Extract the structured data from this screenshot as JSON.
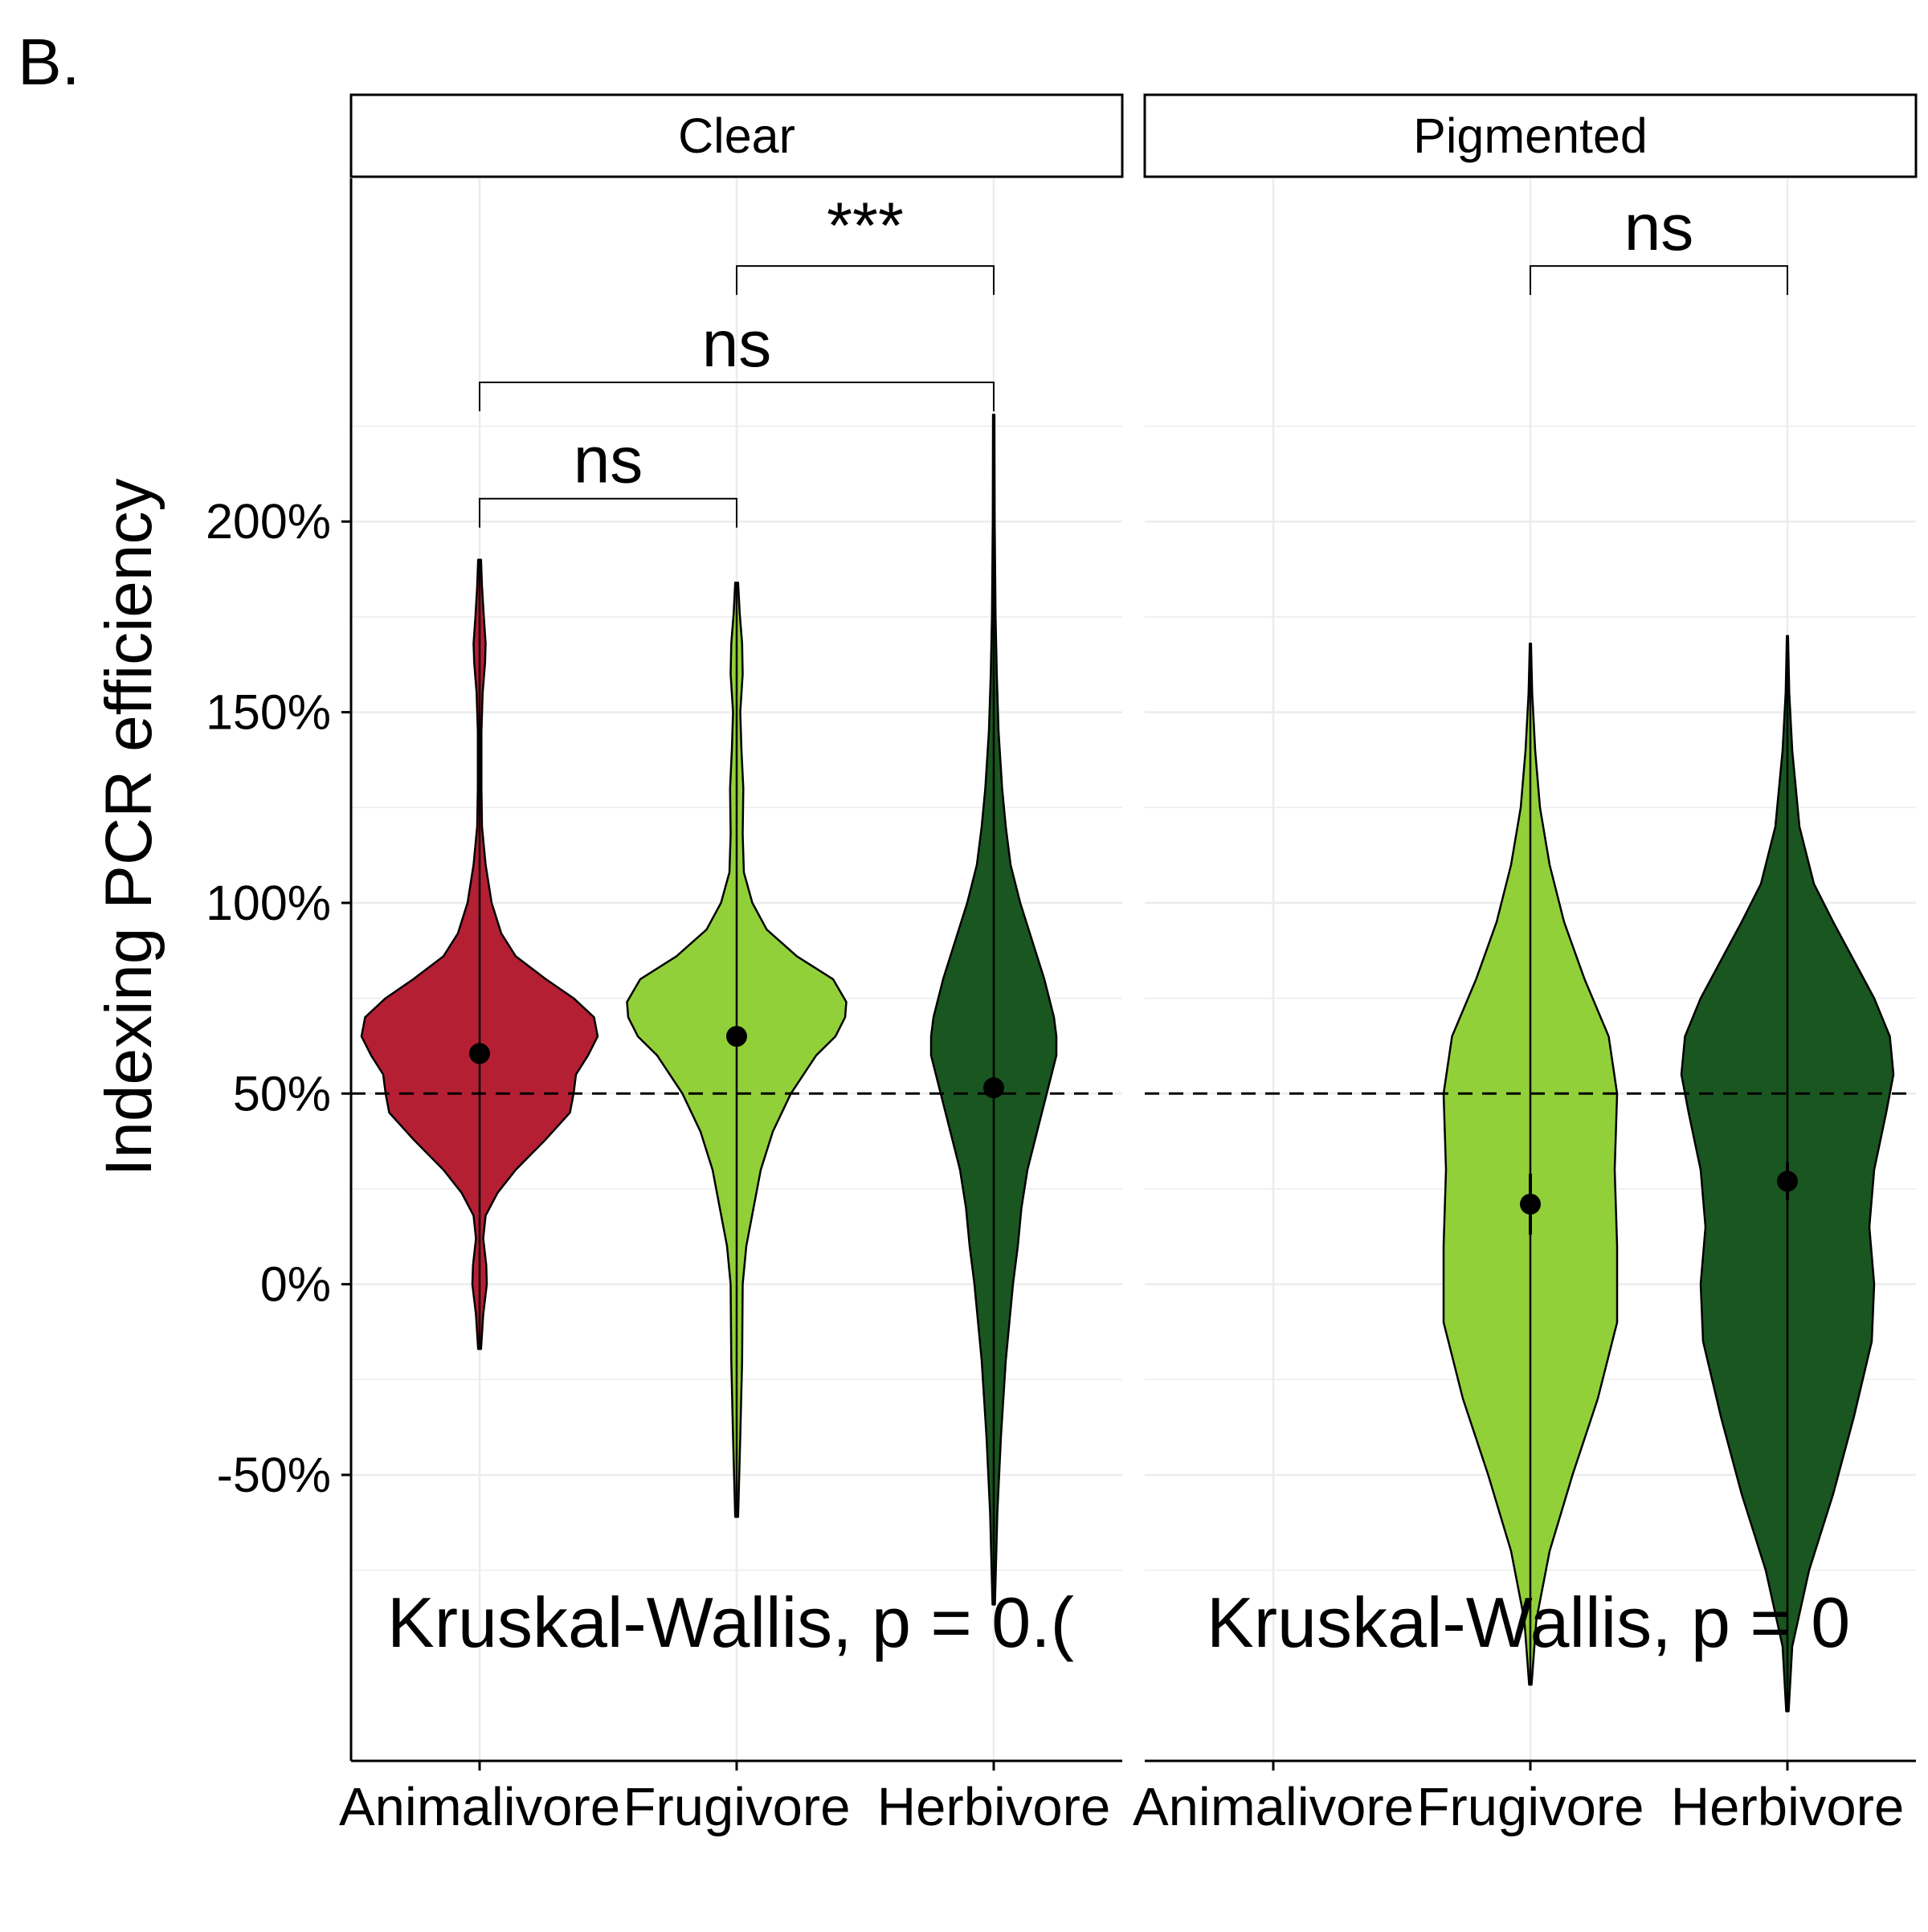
{
  "panel_tag": "B.",
  "colors": {
    "Animalivore": "#b51f34",
    "Frugivore": "#92d03a",
    "Herbivore": "#1a5620",
    "outline": "#000000",
    "grid": "#ececec",
    "reference_line": "#000000"
  },
  "chart_data": {
    "type": "violin",
    "title": "",
    "ylabel": "Indexing PCR efficiency",
    "xlabel": "",
    "ylim": [
      -125,
      290
    ],
    "y_ticks": [
      -50,
      0,
      50,
      100,
      150,
      200
    ],
    "y_tick_labels": [
      "-50%",
      "0%",
      "50%",
      "100%",
      "150%",
      "200%"
    ],
    "y_tick_unit": "%",
    "categories": [
      "Animalivore",
      "Frugivore",
      "Herbivore"
    ],
    "reference_line": {
      "y": 50,
      "style": "dashed"
    },
    "grid": "major and minor, light",
    "legend": "none",
    "facets": [
      {
        "strip_label": "Clear",
        "violins": [
          {
            "category": "Animalivore",
            "color": "#b51f34",
            "ymin": -17,
            "ymax": 190,
            "mean": 60.5,
            "ci": [
              59.5,
              61.5
            ],
            "density": [
              [
                -17,
                0.012
              ],
              [
                -8,
                0.03
              ],
              [
                0,
                0.06
              ],
              [
                5,
                0.055
              ],
              [
                12,
                0.03
              ],
              [
                18,
                0.05
              ],
              [
                24,
                0.15
              ],
              [
                30,
                0.3
              ],
              [
                38,
                0.55
              ],
              [
                45,
                0.75
              ],
              [
                50,
                0.78
              ],
              [
                55,
                0.8
              ],
              [
                60,
                0.9
              ],
              [
                65,
                0.98
              ],
              [
                70,
                0.95
              ],
              [
                75,
                0.78
              ],
              [
                80,
                0.55
              ],
              [
                86,
                0.3
              ],
              [
                92,
                0.18
              ],
              [
                100,
                0.1
              ],
              [
                110,
                0.05
              ],
              [
                120,
                0.02
              ],
              [
                130,
                0.015
              ],
              [
                145,
                0.015
              ],
              [
                155,
                0.025
              ],
              [
                163,
                0.045
              ],
              [
                168,
                0.05
              ],
              [
                175,
                0.035
              ],
              [
                183,
                0.02
              ],
              [
                190,
                0.012
              ]
            ]
          },
          {
            "category": "Frugivore",
            "color": "#92d03a",
            "ymin": -61,
            "ymax": 184,
            "mean": 65,
            "ci": [
              64,
              66
            ],
            "density": [
              [
                -61,
                0.012
              ],
              [
                -40,
                0.03
              ],
              [
                -20,
                0.045
              ],
              [
                0,
                0.05
              ],
              [
                10,
                0.08
              ],
              [
                20,
                0.14
              ],
              [
                30,
                0.2
              ],
              [
                40,
                0.3
              ],
              [
                50,
                0.45
              ],
              [
                60,
                0.66
              ],
              [
                65,
                0.82
              ],
              [
                70,
                0.9
              ],
              [
                74,
                0.91
              ],
              [
                80,
                0.8
              ],
              [
                86,
                0.5
              ],
              [
                93,
                0.25
              ],
              [
                100,
                0.13
              ],
              [
                108,
                0.06
              ],
              [
                118,
                0.05
              ],
              [
                130,
                0.055
              ],
              [
                140,
                0.04
              ],
              [
                150,
                0.03
              ],
              [
                160,
                0.05
              ],
              [
                168,
                0.045
              ],
              [
                176,
                0.025
              ],
              [
                184,
                0.012
              ]
            ]
          },
          {
            "category": "Herbivore",
            "color": "#1a5620",
            "ymin": -84,
            "ymax": 228,
            "mean": 51.5,
            "ci": [
              50.5,
              52.5
            ],
            "density": [
              [
                -84,
                0.01
              ],
              [
                -60,
                0.03
              ],
              [
                -40,
                0.06
              ],
              [
                -20,
                0.1
              ],
              [
                0,
                0.16
              ],
              [
                10,
                0.2
              ],
              [
                20,
                0.23
              ],
              [
                30,
                0.28
              ],
              [
                40,
                0.36
              ],
              [
                50,
                0.44
              ],
              [
                60,
                0.52
              ],
              [
                65,
                0.52
              ],
              [
                70,
                0.5
              ],
              [
                80,
                0.42
              ],
              [
                90,
                0.32
              ],
              [
                100,
                0.22
              ],
              [
                110,
                0.14
              ],
              [
                120,
                0.1
              ],
              [
                130,
                0.07
              ],
              [
                145,
                0.04
              ],
              [
                160,
                0.025
              ],
              [
                175,
                0.015
              ],
              [
                200,
                0.008
              ],
              [
                228,
                0.006
              ]
            ]
          }
        ],
        "comparisons": [
          {
            "groups": [
              "Animalivore",
              "Frugivore"
            ],
            "label": "ns",
            "y_bar": 206
          },
          {
            "groups": [
              "Animalivore",
              "Herbivore"
            ],
            "label": "ns",
            "y_bar": 236.5
          },
          {
            "groups": [
              "Frugivore",
              "Herbivore"
            ],
            "label": "***",
            "y_bar": 267
          }
        ],
        "test_text": "Kruskal-Wallis, p = 0.("
      },
      {
        "strip_label": "Pigmented",
        "violins": [
          {
            "category": "Frugivore",
            "color": "#92d03a",
            "ymin": -105,
            "ymax": 168,
            "mean": 21,
            "ci": [
              13,
              29
            ],
            "density": [
              [
                -105,
                0.01
              ],
              [
                -88,
                0.05
              ],
              [
                -70,
                0.16
              ],
              [
                -50,
                0.35
              ],
              [
                -30,
                0.56
              ],
              [
                -10,
                0.72
              ],
              [
                10,
                0.72
              ],
              [
                30,
                0.7
              ],
              [
                50,
                0.72
              ],
              [
                65,
                0.65
              ],
              [
                80,
                0.45
              ],
              [
                95,
                0.28
              ],
              [
                110,
                0.16
              ],
              [
                125,
                0.08
              ],
              [
                140,
                0.04
              ],
              [
                155,
                0.015
              ],
              [
                168,
                0.005
              ]
            ]
          },
          {
            "category": "Herbivore",
            "color": "#1a5620",
            "ymin": -112,
            "ymax": 170,
            "mean": 27,
            "ci": [
              22,
              32
            ],
            "density": [
              [
                -112,
                0.01
              ],
              [
                -95,
                0.04
              ],
              [
                -75,
                0.18
              ],
              [
                -55,
                0.38
              ],
              [
                -35,
                0.55
              ],
              [
                -15,
                0.7
              ],
              [
                0,
                0.72
              ],
              [
                15,
                0.68
              ],
              [
                30,
                0.72
              ],
              [
                45,
                0.82
              ],
              [
                55,
                0.88
              ],
              [
                65,
                0.85
              ],
              [
                75,
                0.72
              ],
              [
                85,
                0.55
              ],
              [
                95,
                0.38
              ],
              [
                105,
                0.22
              ],
              [
                120,
                0.1
              ],
              [
                140,
                0.04
              ],
              [
                155,
                0.015
              ],
              [
                170,
                0.005
              ]
            ]
          }
        ],
        "comparisons": [
          {
            "groups": [
              "Frugivore",
              "Herbivore"
            ],
            "label": "ns",
            "y_bar": 267
          }
        ],
        "test_text": "Kruskal-Wallis, p = 0"
      }
    ]
  }
}
